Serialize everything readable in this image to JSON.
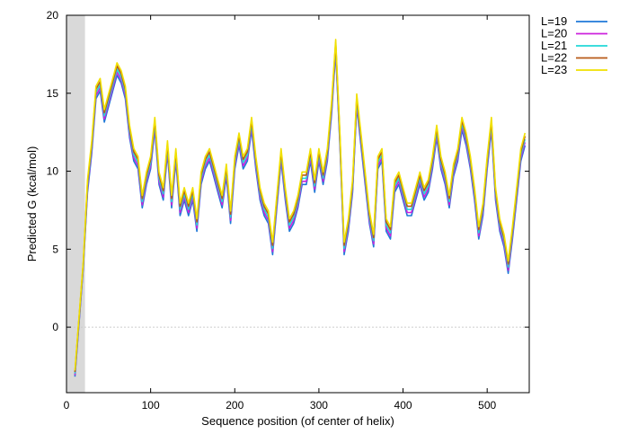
{
  "chart_data": {
    "type": "line",
    "xlabel": "Sequence position (of center of helix)",
    "ylabel": "Predicted  G (kcal/mol)",
    "xlim": [
      0,
      550
    ],
    "ylim": [
      -4.2,
      20
    ],
    "x_ticks": [
      0,
      100,
      200,
      300,
      400,
      500
    ],
    "y_ticks": [
      0,
      5,
      10,
      15,
      20
    ],
    "grid": false,
    "zero_line": true,
    "legend_position": "outside-top-right",
    "shaded_region": {
      "x_start": 0,
      "x_end": 22,
      "color": "#d9d9d9"
    },
    "x": [
      10,
      20,
      25,
      30,
      35,
      40,
      45,
      50,
      55,
      60,
      65,
      70,
      75,
      80,
      85,
      90,
      95,
      100,
      105,
      110,
      115,
      120,
      125,
      130,
      135,
      140,
      145,
      150,
      155,
      160,
      165,
      170,
      175,
      180,
      185,
      190,
      195,
      200,
      205,
      210,
      215,
      220,
      225,
      230,
      235,
      240,
      245,
      250,
      255,
      260,
      265,
      270,
      275,
      280,
      285,
      290,
      295,
      300,
      305,
      310,
      315,
      320,
      325,
      330,
      335,
      340,
      345,
      350,
      355,
      360,
      365,
      370,
      375,
      380,
      385,
      390,
      395,
      400,
      405,
      410,
      415,
      420,
      425,
      430,
      435,
      440,
      445,
      450,
      455,
      460,
      465,
      470,
      475,
      480,
      485,
      490,
      495,
      500,
      505,
      510,
      515,
      520,
      525,
      530,
      535,
      540,
      545
    ],
    "base_values": [
      -3.0,
      4.0,
      9.0,
      11.5,
      15.0,
      15.5,
      13.5,
      14.5,
      15.5,
      16.5,
      16.0,
      15.0,
      12.5,
      11.0,
      10.5,
      8.0,
      9.5,
      10.5,
      13.0,
      9.5,
      8.5,
      11.5,
      8.0,
      11.0,
      7.5,
      8.5,
      7.5,
      8.5,
      6.5,
      9.5,
      10.5,
      11.0,
      10.0,
      9.0,
      8.0,
      10.0,
      7.0,
      10.5,
      12.0,
      10.5,
      11.0,
      13.0,
      10.5,
      8.5,
      7.5,
      7.0,
      5.0,
      8.0,
      11.0,
      8.5,
      6.5,
      7.0,
      8.0,
      9.5,
      9.5,
      11.0,
      9.0,
      11.0,
      9.5,
      11.0,
      14.0,
      18.0,
      12.0,
      5.0,
      6.5,
      9.0,
      14.5,
      12.0,
      9.5,
      7.0,
      5.5,
      10.5,
      11.0,
      6.5,
      6.0,
      9.0,
      9.5,
      8.5,
      7.5,
      7.5,
      8.5,
      9.5,
      8.5,
      9.0,
      10.5,
      12.5,
      10.5,
      9.5,
      8.0,
      10.0,
      11.0,
      13.0,
      12.0,
      10.5,
      8.5,
      6.0,
      7.5,
      10.5,
      13.0,
      8.5,
      6.5,
      5.5,
      3.8,
      6.0,
      8.5,
      11.0,
      12.0
    ],
    "series": [
      {
        "name": "L=19",
        "color": "#1f78d8",
        "offset": -0.35
      },
      {
        "name": "L=20",
        "color": "#cc22dd",
        "offset": -0.15
      },
      {
        "name": "L=21",
        "color": "#22d8d8",
        "offset": 0.05
      },
      {
        "name": "L=22",
        "color": "#b85a18",
        "offset": 0.25
      },
      {
        "name": "L=23",
        "color": "#f0e000",
        "offset": 0.45
      }
    ]
  }
}
